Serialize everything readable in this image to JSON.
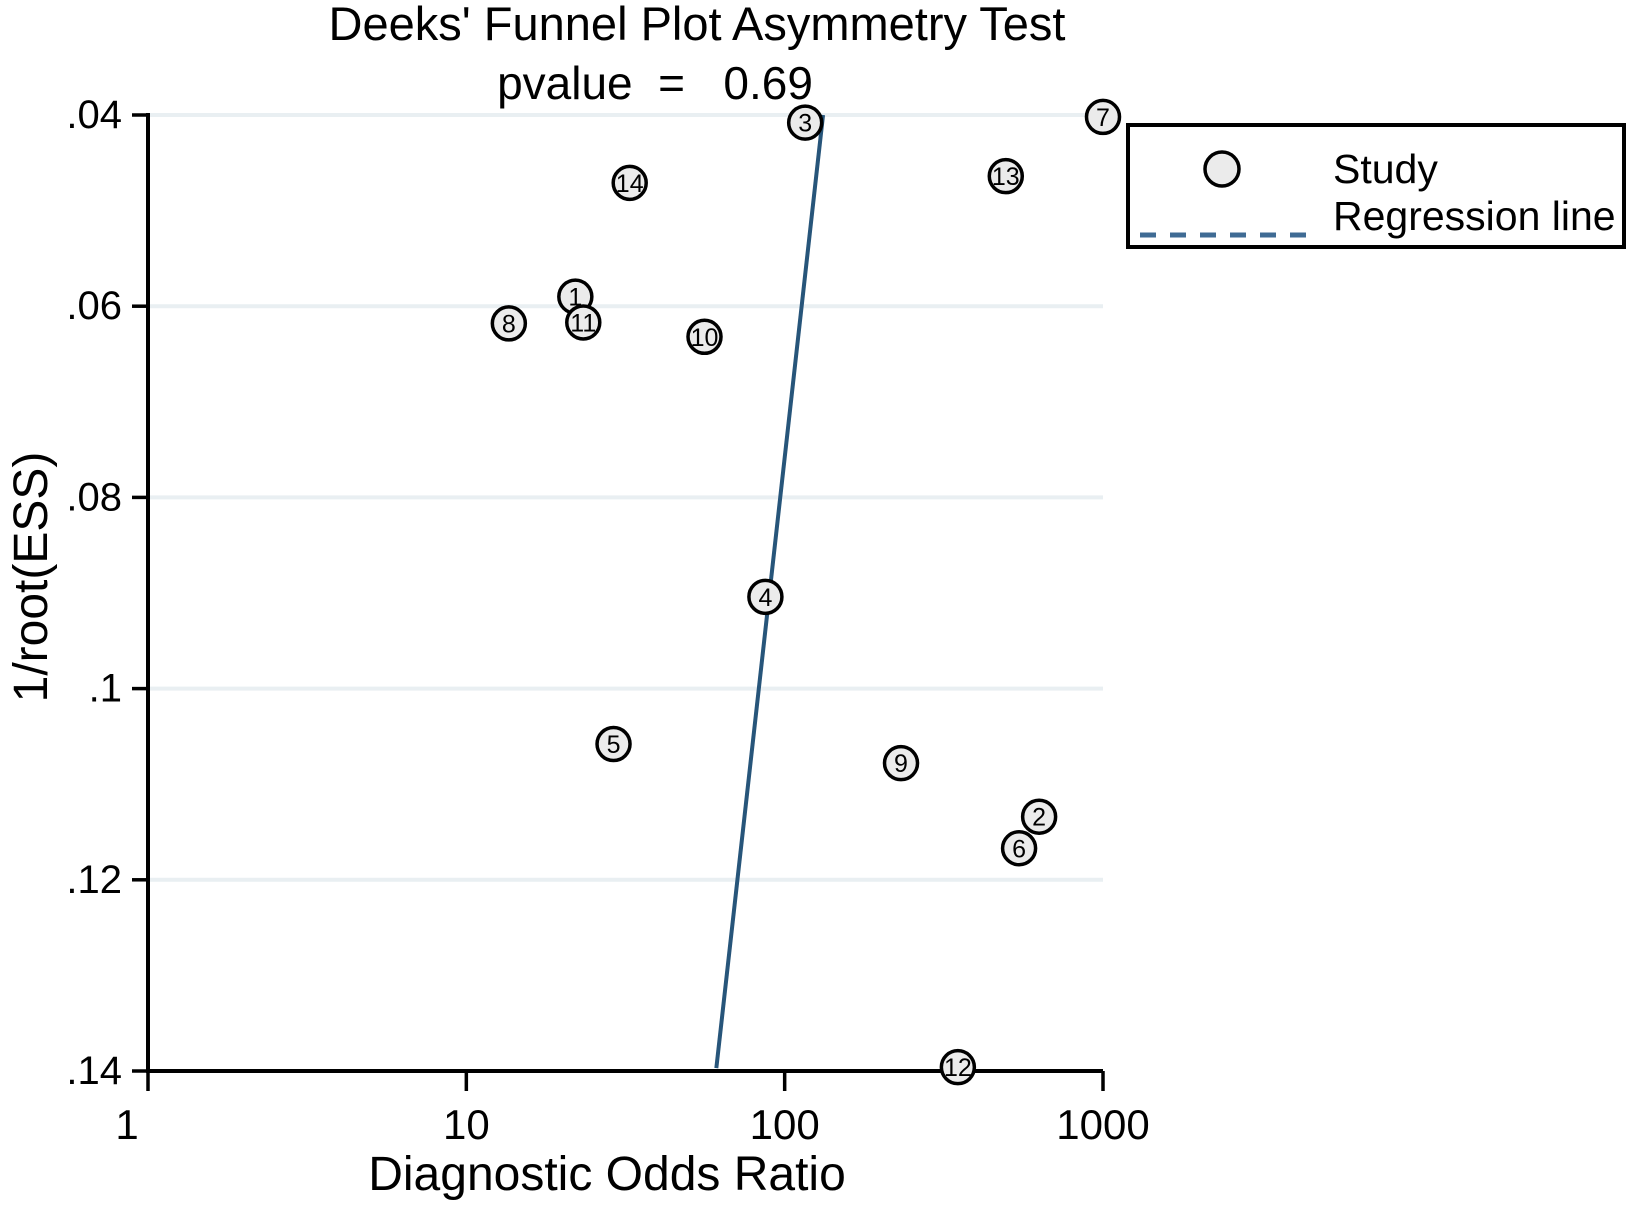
{
  "chart_data": {
    "type": "scatter",
    "title": "Deeks' Funnel Plot Asymmetry Test",
    "subtitle": "pvalue  =   0.69",
    "pvalue": 0.69,
    "xlabel": "Diagnostic Odds Ratio",
    "ylabel": "1/root(ESS)",
    "x_scale": "log10",
    "xlim": [
      1,
      1000
    ],
    "x_ticks": [
      1,
      10,
      100,
      1000
    ],
    "x_tick_labels": [
      "1",
      "10",
      "100",
      "1000"
    ],
    "ylim": [
      0.04,
      0.14
    ],
    "y_inverted": true,
    "y_ticks": [
      0.04,
      0.06,
      0.08,
      0.1,
      0.12,
      0.14
    ],
    "y_tick_labels": [
      ".04",
      ".06",
      ".08",
      ".1",
      ".12",
      ".14"
    ],
    "grid": "horizontal",
    "legend_position": "top-right",
    "legend_items": [
      "Study",
      "Regression line"
    ],
    "points": [
      {
        "study": 1,
        "dor": 22,
        "inv_root_ess": 0.059
      },
      {
        "study": 2,
        "dor": 630,
        "inv_root_ess": 0.1134
      },
      {
        "study": 3,
        "dor": 116,
        "inv_root_ess": 0.0408
      },
      {
        "study": 4,
        "dor": 87,
        "inv_root_ess": 0.0904
      },
      {
        "study": 5,
        "dor": 29,
        "inv_root_ess": 0.1058
      },
      {
        "study": 6,
        "dor": 545,
        "inv_root_ess": 0.1167
      },
      {
        "study": 7,
        "dor": 1000,
        "inv_root_ess": 0.0402
      },
      {
        "study": 8,
        "dor": 13.6,
        "inv_root_ess": 0.0618
      },
      {
        "study": 9,
        "dor": 232,
        "inv_root_ess": 0.1078
      },
      {
        "study": 10,
        "dor": 56,
        "inv_root_ess": 0.0632
      },
      {
        "study": 11,
        "dor": 23.3,
        "inv_root_ess": 0.0617
      },
      {
        "study": 12,
        "dor": 350,
        "inv_root_ess": 0.1396
      },
      {
        "study": 13,
        "dor": 495,
        "inv_root_ess": 0.0464
      },
      {
        "study": 14,
        "dor": 32.6,
        "inv_root_ess": 0.0471
      }
    ],
    "regression_line": {
      "points": [
        {
          "x": 132,
          "y": 0.04
        },
        {
          "x": 61,
          "y": 0.1397
        }
      ]
    },
    "colors": {
      "regression_line": "#27557a",
      "legend_dash": "#3f6b94",
      "marker_fill": "#ebebeb",
      "marker_stroke": "#000000",
      "grid": "#e9eff2",
      "axis": "#000000"
    }
  }
}
